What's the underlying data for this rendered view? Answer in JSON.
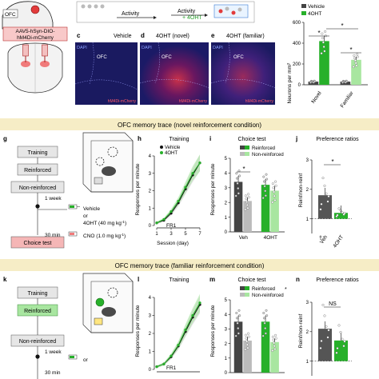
{
  "figure": {
    "top": {
      "ofc_label": "OFC",
      "virus_lines": [
        "AAV5-hSyn-DIO-",
        "hM4Di-mCherry"
      ],
      "timeline": [
        "Activity",
        "Activity",
        "+ 4OHT"
      ],
      "panels": [
        {
          "letter": "c",
          "title": "Vehicle",
          "dapi": "DAPI",
          "ofc": "OFC",
          "marker": "hM4Di-mCherry"
        },
        {
          "letter": "d",
          "title": "4OHT (novel)",
          "dapi": "DAPI",
          "ofc": "OFC",
          "marker": "hM4Di-mCherry"
        },
        {
          "letter": "e",
          "title": "4OHT (familiar)",
          "dapi": "DAPI",
          "ofc": "OFC",
          "marker": "hM4Di-mCherry"
        }
      ],
      "legend": [
        "Vehicle",
        "4OHT"
      ],
      "ylabel": "Neurons per mm",
      "ylabel_sup": "2",
      "xticks": [
        "Novel",
        "Familiar"
      ],
      "sig": [
        "*",
        "*",
        "*"
      ]
    },
    "banner1": "OFC memory trace (novel reinforcement condition)",
    "banner2": "OFC memory trace (familiar reinforcement condition)",
    "row2": {
      "flow": {
        "letter": "g",
        "training": "Training",
        "reinforced": "Reinforced",
        "nonreinforced": "Non-reinforced",
        "week": "1 week",
        "vehicle": "Vehicle",
        "or": "or",
        "drug": "4OHT (40 mg kg",
        "drug_sup": "-1",
        "drug_close": ")",
        "wait": "30 min",
        "test": "Choice test",
        "cno": "CNO (1.0 mg kg",
        "cno_sup": "-1",
        "cno_close": ")"
      },
      "h": {
        "letter": "h",
        "title": "Training",
        "ylabel": "Responses per minute",
        "xlabel": "Session (day)",
        "fr": "FR1",
        "legend": [
          "Vehicle",
          "4OHT"
        ]
      },
      "i": {
        "letter": "i",
        "title": "Choice test",
        "ylabel": "Responses per minute",
        "legend": [
          "Reinforced",
          "Non-reinforced"
        ],
        "xticks": [
          "Veh",
          "4OHT"
        ],
        "sig": "*"
      },
      "j": {
        "letter": "j",
        "title": "Preference ratios",
        "ylabel": "Reinf/non-reinf",
        "xticks": [
          "Veh",
          "4OHT"
        ],
        "sig": "*",
        "dagger": "†"
      }
    },
    "row3": {
      "flow": {
        "letter": "k",
        "training": "Training",
        "reinforced": "Reinforced",
        "nonreinforced": "Non-reinforced",
        "week": "1 week",
        "or": "or",
        "wait": "30 min"
      },
      "l": {
        "letter": "l",
        "title": "Training",
        "ylabel": "Responses per minute",
        "fr": "FR1"
      },
      "m": {
        "letter": "m",
        "title": "Choice test",
        "ylabel": "Responses per minute",
        "legend": [
          "Reinforced",
          "Non-reinforced"
        ],
        "legend_sig": "*"
      },
      "n": {
        "letter": "n",
        "title": "Preference ratios",
        "ylabel": "Reinf/non-reinf",
        "sig": "NS"
      }
    }
  },
  "chart_data": [
    {
      "type": "bar",
      "title": "",
      "ylabel": "Neurons per mm2",
      "categories": [
        "Novel",
        "Familiar"
      ],
      "series": [
        {
          "name": "Vehicle",
          "values": [
            30,
            30
          ]
        },
        {
          "name": "4OHT",
          "values": [
            420,
            240
          ]
        }
      ],
      "ylim": [
        0,
        600
      ]
    },
    {
      "type": "line",
      "title": "Training",
      "xlabel": "Session (day)",
      "ylabel": "Responses per minute",
      "x": [
        1,
        2,
        3,
        4,
        5,
        6,
        7
      ],
      "xticks": [
        1,
        3,
        5,
        7
      ],
      "yticks": [
        0,
        1,
        2,
        3,
        4
      ],
      "ylim": [
        0,
        4
      ],
      "series": [
        {
          "name": "Vehicle",
          "values": [
            0.15,
            0.3,
            0.7,
            1.3,
            2.1,
            2.9,
            3.6
          ]
        },
        {
          "name": "4OHT",
          "values": [
            0.15,
            0.35,
            0.8,
            1.4,
            2.2,
            3.0,
            3.6
          ]
        }
      ]
    },
    {
      "type": "bar",
      "title": "Choice test",
      "ylabel": "Responses per minute",
      "categories": [
        "Veh",
        "4OHT"
      ],
      "series": [
        {
          "name": "Reinforced",
          "values": [
            3.4,
            3.2
          ]
        },
        {
          "name": "Non-reinforced",
          "values": [
            2.1,
            2.8
          ]
        }
      ],
      "yticks": [
        0,
        1,
        2,
        3,
        4,
        5
      ],
      "ylim": [
        0,
        5
      ]
    },
    {
      "type": "bar",
      "title": "Preference ratios",
      "ylabel": "Reinf/non-reinf",
      "categories": [
        "Veh",
        "4OHT"
      ],
      "values": [
        1.8,
        1.2
      ],
      "yticks": [
        1,
        2,
        3
      ],
      "ylim": [
        0.5,
        3
      ]
    },
    {
      "type": "line",
      "title": "Training",
      "ylabel": "Responses per minute",
      "x": [
        1,
        2,
        3,
        4,
        5,
        6,
        7
      ],
      "yticks": [
        0,
        1,
        2,
        3,
        4
      ],
      "ylim": [
        0,
        4
      ],
      "series": [
        {
          "name": "Vehicle",
          "values": [
            0.15,
            0.3,
            0.7,
            1.3,
            2.1,
            2.9,
            3.6
          ]
        },
        {
          "name": "4OHT",
          "values": [
            0.15,
            0.3,
            0.75,
            1.35,
            2.2,
            3.0,
            3.7
          ]
        }
      ]
    },
    {
      "type": "bar",
      "title": "Choice test",
      "ylabel": "Responses per minute",
      "categories": [
        "Veh",
        "4OHT"
      ],
      "series": [
        {
          "name": "Reinforced",
          "values": [
            3.5,
            3.5
          ]
        },
        {
          "name": "Non-reinforced",
          "values": [
            2.2,
            2.1
          ]
        }
      ],
      "yticks": [
        0,
        1,
        2,
        3,
        4,
        5
      ],
      "ylim": [
        0,
        5
      ]
    },
    {
      "type": "bar",
      "title": "Preference ratios",
      "ylabel": "Reinf/non-reinf",
      "categories": [
        "Veh",
        "4OHT"
      ],
      "values": [
        2.1,
        1.7
      ],
      "yticks": [
        1,
        2,
        3
      ],
      "ylim": [
        0.5,
        3
      ]
    }
  ]
}
